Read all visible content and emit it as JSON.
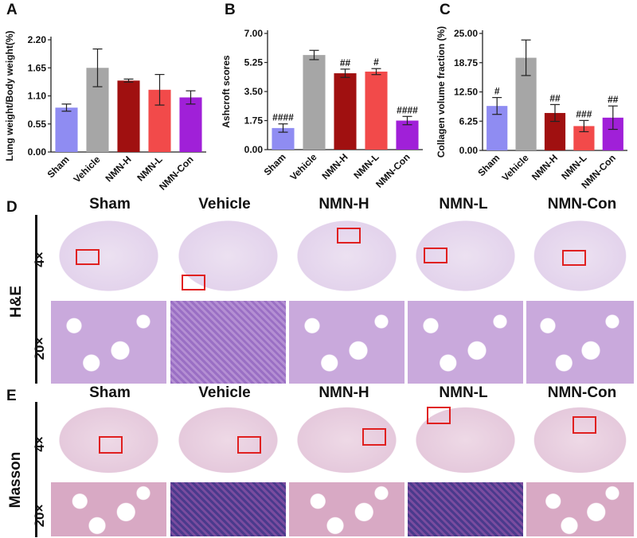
{
  "panels": {
    "A": {
      "letter": "A"
    },
    "B": {
      "letter": "B"
    },
    "C": {
      "letter": "C"
    },
    "D": {
      "letter": "D",
      "stain": "H&E"
    },
    "E": {
      "letter": "E",
      "stain": "Masson"
    }
  },
  "groups": [
    "Sham",
    "Vehicle",
    "NMN-H",
    "NMN-L",
    "NMN-Con"
  ],
  "magnifications": {
    "low": "4×",
    "high": "20×"
  },
  "colors": {
    "Sham": "#8f8cf2",
    "Vehicle": "#a6a6a6",
    "NMN-H": "#a01010",
    "NMN-L": "#f24a4a",
    "NMN-Con": "#a020d8"
  },
  "chart_data": [
    {
      "type": "bar",
      "ylabel": "Lung weight/Body weight(%)",
      "categories": [
        "Sham",
        "Vehicle",
        "NMN-H",
        "NMN-L",
        "NMN-Con"
      ],
      "values": [
        0.87,
        1.65,
        1.4,
        1.22,
        1.07
      ],
      "errors": [
        0.07,
        0.37,
        0.03,
        0.3,
        0.13
      ],
      "annotations": [
        "",
        "",
        "",
        "",
        ""
      ],
      "yticks": [
        "0.00",
        "0.55",
        "1.10",
        "1.65",
        "2.20"
      ],
      "ylim": [
        0,
        2.2
      ]
    },
    {
      "type": "bar",
      "ylabel": "Ashcroft scores",
      "categories": [
        "Sham",
        "Vehicle",
        "NMN-H",
        "NMN-L",
        "NMN-Con"
      ],
      "values": [
        1.3,
        5.7,
        4.6,
        4.7,
        1.75
      ],
      "errors": [
        0.25,
        0.28,
        0.25,
        0.18,
        0.25
      ],
      "annotations": [
        "####",
        "",
        "##",
        "#",
        "####"
      ],
      "yticks": [
        "0.00",
        "1.75",
        "3.50",
        "5.25",
        "7.00"
      ],
      "ylim": [
        0,
        7
      ]
    },
    {
      "type": "bar",
      "ylabel": "Collagen volume fraction (%)",
      "categories": [
        "Sham",
        "Vehicle",
        "NMN-H",
        "NMN-L",
        "NMN-Con"
      ],
      "values": [
        9.5,
        19.8,
        8.0,
        5.2,
        7.0
      ],
      "errors": [
        1.8,
        3.8,
        1.8,
        1.2,
        2.5
      ],
      "annotations": [
        "#",
        "",
        "##",
        "###",
        "##"
      ],
      "yticks": [
        "0.00",
        "6.25",
        "12.50",
        "18.75",
        "25.00"
      ],
      "ylim": [
        0,
        25
      ]
    }
  ]
}
